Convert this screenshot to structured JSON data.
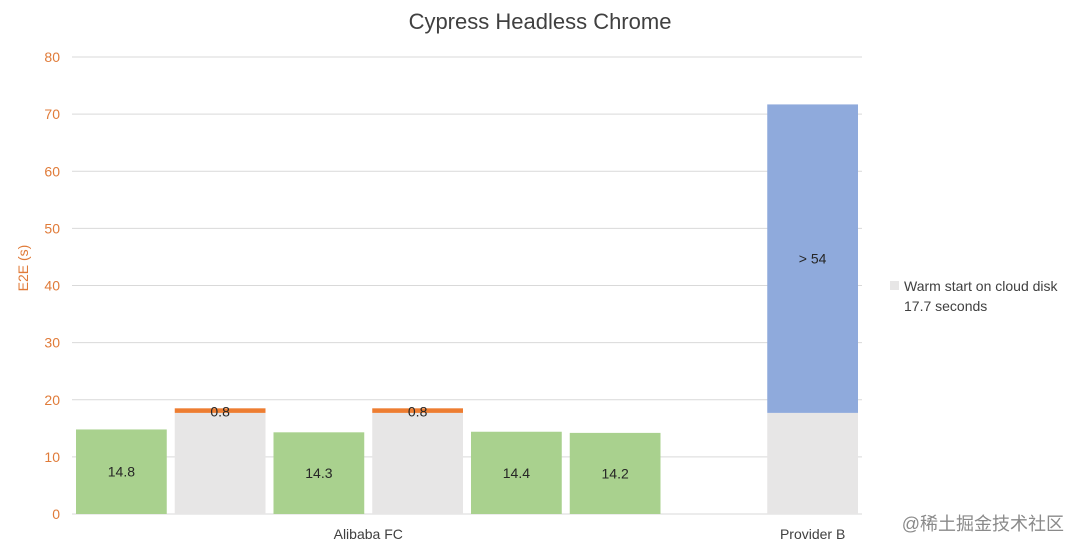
{
  "chart_data": {
    "type": "bar",
    "title": "Cypress Headless Chrome",
    "ylabel": "E2E (s)",
    "xlabel": "",
    "ylim": [
      0,
      80
    ],
    "yticks": [
      0,
      10,
      20,
      30,
      40,
      50,
      60,
      70,
      80
    ],
    "grid": true,
    "categories": [
      "Alibaba FC",
      "Provider B"
    ],
    "bars": [
      {
        "group": "Alibaba FC",
        "segments": [
          {
            "value": 14.8,
            "color": "#a9d18e",
            "label": "14.8"
          }
        ]
      },
      {
        "group": "Alibaba FC",
        "segments": [
          {
            "value": 17.7,
            "color": "#e7e6e6",
            "label": ""
          },
          {
            "value": 0.8,
            "color": "#ed7d31",
            "label": "0.8"
          }
        ]
      },
      {
        "group": "Alibaba FC",
        "segments": [
          {
            "value": 14.3,
            "color": "#a9d18e",
            "label": "14.3"
          }
        ]
      },
      {
        "group": "Alibaba FC",
        "segments": [
          {
            "value": 17.7,
            "color": "#e7e6e6",
            "label": ""
          },
          {
            "value": 0.8,
            "color": "#ed7d31",
            "label": "0.8"
          }
        ]
      },
      {
        "group": "Alibaba FC",
        "segments": [
          {
            "value": 14.4,
            "color": "#a9d18e",
            "label": "14.4"
          }
        ]
      },
      {
        "group": "Alibaba FC",
        "segments": [
          {
            "value": 14.2,
            "color": "#a9d18e",
            "label": "14.2"
          }
        ]
      },
      {
        "group": "",
        "segments": []
      },
      {
        "group": "Provider B",
        "segments": [
          {
            "value": 17.7,
            "color": "#e7e6e6",
            "label": ""
          },
          {
            "value": 54,
            "color": "#8faadc",
            "label": "> 54"
          }
        ]
      }
    ],
    "legend": {
      "position": "right",
      "entries": [
        {
          "color": "#e7e6e6",
          "text": "Warm start on cloud disk",
          "subtext": "17.7 seconds"
        }
      ]
    },
    "colors": {
      "axis_text": "#e07b39",
      "grid": "#d9d9d9",
      "title": "#404040"
    }
  },
  "watermark": "@稀土掘金技术社区"
}
